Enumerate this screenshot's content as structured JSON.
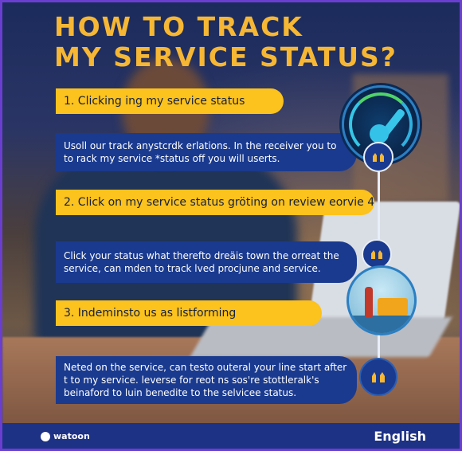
{
  "title": {
    "line1": "HOW TO TRACK",
    "line2": "MY SERVICE STATUS?"
  },
  "steps": [
    {
      "heading": "1. Clicking ing my service status",
      "description": "Usoll our track anystcrdk erlations. In the receiver you to to rack my service *status off you will userts."
    },
    {
      "heading": "2. Click on my service status gröting on review eorvie 4",
      "description": "Click your status what therefto dreäis town the orreat the service, can mden to track lved procjune and service."
    },
    {
      "heading": "3. Indeminsto us as listforming",
      "description": "Neted on the service, can testo outeral your line start after t to my service. leverse for reot ns sos're stottleralk's beinaford to luin benedite to the selvicee status."
    }
  ],
  "footer": {
    "logo_text": "watoon",
    "language": "English"
  },
  "colors": {
    "accent_yellow": "#fcc21d",
    "title_orange": "#f6b734",
    "panel_blue": "#1a3a8f",
    "footer_blue": "#1d3185",
    "frame_purple": "#6a3fd0"
  },
  "icons": [
    "speedometer-icon",
    "hands-icon",
    "hands-icon",
    "hands-icon"
  ]
}
